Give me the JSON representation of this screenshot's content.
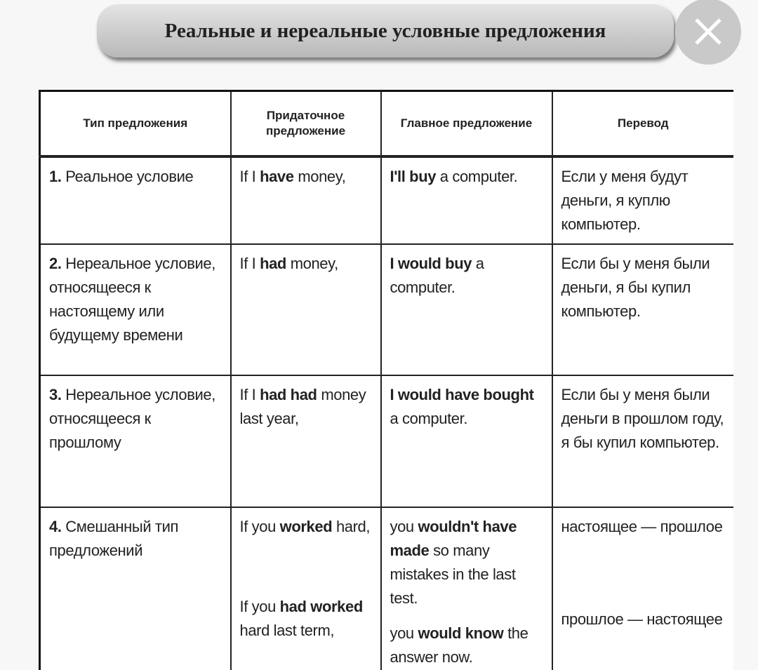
{
  "header": {
    "title": "Реальные и нереальные условные предложения"
  },
  "table": {
    "columns": [
      "Тип предложения",
      "Придаточное предложение",
      "Главное предложение",
      "Перевод"
    ],
    "rows": [
      [
        [
          [
            {
              "bold": "1."
            },
            " Реальное условие"
          ]
        ],
        [
          [
            "If I ",
            {
              "bold": "have"
            },
            " money,"
          ]
        ],
        [
          [
            {
              "bold": "I'll buy"
            },
            " a computer."
          ]
        ],
        [
          [
            "Если у меня будут деньги, я куплю компьютер."
          ]
        ]
      ],
      [
        [
          [
            {
              "bold": "2."
            },
            " Нереальное условие, относящееся к настоящему или будущему времени"
          ]
        ],
        [
          [
            "If I ",
            {
              "bold": "had"
            },
            " money,"
          ]
        ],
        [
          [
            {
              "bold": "I would buy"
            },
            " a computer."
          ]
        ],
        [
          [
            "Если бы у меня были деньги, я бы купил компьютер."
          ]
        ]
      ],
      [
        [
          [
            {
              "bold": "3."
            },
            " Нереальное условие, относящееся к прошлому"
          ]
        ],
        [
          [
            "If I ",
            {
              "bold": "had had"
            },
            " money last year,"
          ]
        ],
        [
          [
            {
              "bold": "I would have bought"
            },
            " a computer."
          ]
        ],
        [
          [
            "Если бы у меня были деньги в прошлом году, я бы купил компьютер."
          ]
        ]
      ],
      [
        [
          [
            {
              "bold": "4."
            },
            " Смешанный тип предложений"
          ]
        ],
        [
          [
            "If you ",
            {
              "bold": "worked"
            },
            " hard,"
          ],
          [
            "If you ",
            {
              "bold": "had worked"
            },
            " hard last term,"
          ]
        ],
        [
          [
            "you ",
            {
              "bold": "wouldn't have made"
            },
            " so many mistakes in the last test."
          ],
          [
            "you ",
            {
              "bold": "would know"
            },
            " the answer now."
          ]
        ],
        [
          [
            "настоящее — прошлое"
          ],
          [
            "прошлое — настоящее"
          ]
        ]
      ]
    ]
  }
}
